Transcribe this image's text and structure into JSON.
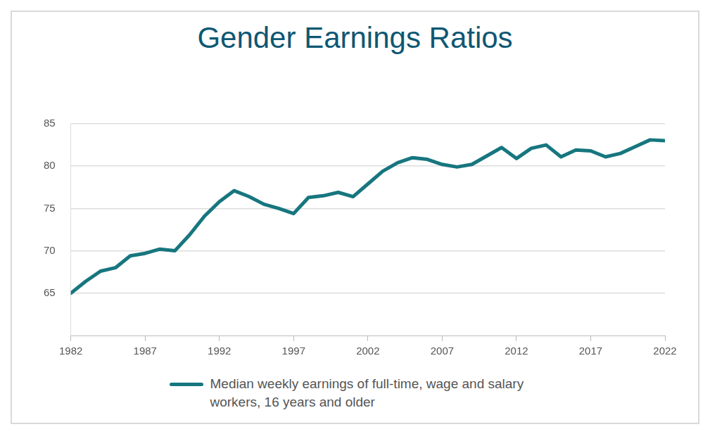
{
  "chart_data": {
    "type": "line",
    "title": "Gender Earnings Ratios",
    "x": [
      1982,
      1983,
      1984,
      1985,
      1986,
      1987,
      1988,
      1989,
      1990,
      1991,
      1992,
      1993,
      1994,
      1995,
      1996,
      1997,
      1998,
      1999,
      2000,
      2001,
      2002,
      2003,
      2004,
      2005,
      2006,
      2007,
      2008,
      2009,
      2010,
      2011,
      2012,
      2013,
      2014,
      2015,
      2016,
      2017,
      2018,
      2019,
      2020,
      2021,
      2022
    ],
    "series": [
      {
        "name": "Median weekly earnings of full-time, wage and salary workers, 16 years and older",
        "color": "#17767f",
        "values": [
          65.0,
          66.4,
          67.6,
          68.0,
          69.4,
          69.7,
          70.2,
          70.0,
          71.9,
          74.1,
          75.8,
          77.1,
          76.4,
          75.5,
          75.0,
          74.4,
          76.3,
          76.5,
          76.9,
          76.4,
          77.9,
          79.4,
          80.4,
          81.0,
          80.8,
          80.2,
          79.9,
          80.2,
          81.2,
          82.2,
          80.9,
          82.1,
          82.5,
          81.1,
          81.9,
          81.8,
          81.1,
          81.5,
          82.3,
          83.1,
          83.0
        ]
      }
    ],
    "xlim": [
      1982,
      2022
    ],
    "xticks": [
      1982,
      1987,
      1992,
      1997,
      2002,
      2007,
      2012,
      2017,
      2022
    ],
    "ylim": [
      60,
      85
    ],
    "yticks": [
      65,
      70,
      75,
      80,
      85
    ],
    "grid": "y",
    "legend": "bottom"
  }
}
